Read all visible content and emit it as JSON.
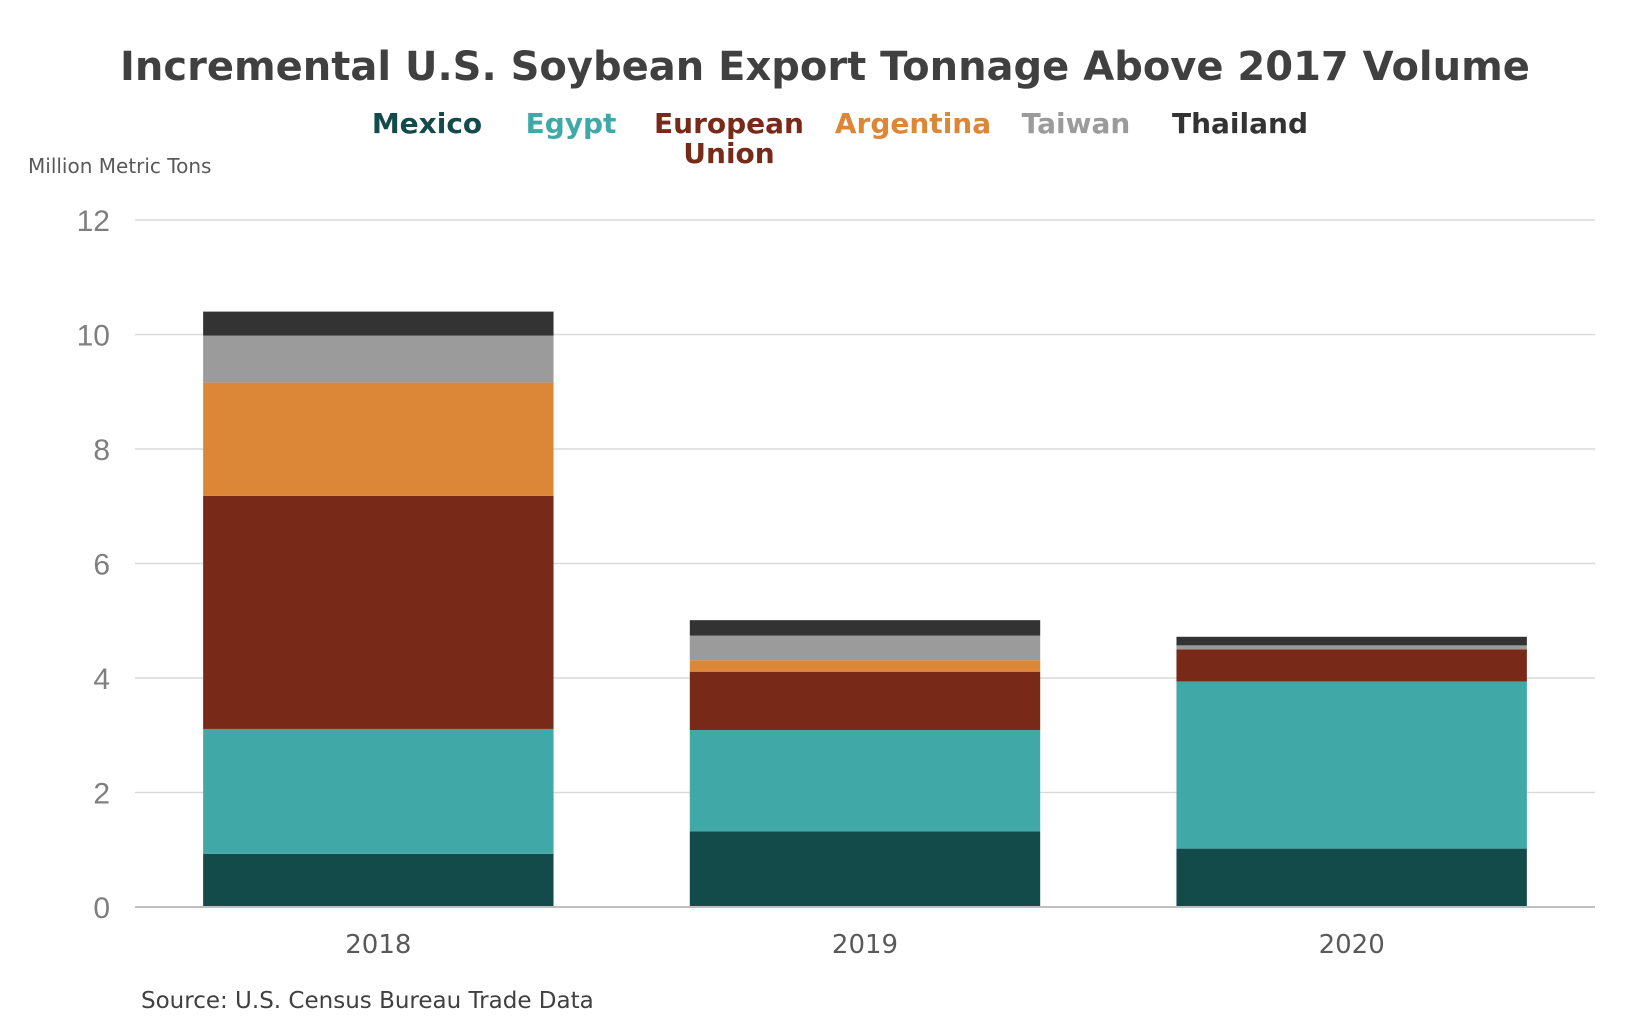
{
  "chart_data": {
    "type": "bar",
    "stacked": true,
    "title": "Incremental U.S. Soybean Export Tonnage Above 2017 Volume",
    "ylabel": "Million Metric Tons",
    "xlabel": "",
    "ylim": [
      0,
      12
    ],
    "yticks": [
      "0",
      "2",
      "4",
      "6",
      "8",
      "10",
      "12"
    ],
    "grid": true,
    "legend_position": "top",
    "categories": [
      "2018",
      "2019",
      "2020"
    ],
    "series": [
      {
        "name": "Mexico",
        "legend_lines": [
          "Mexico"
        ],
        "color": "#134a4a",
        "values": [
          0.93,
          1.32,
          1.02
        ]
      },
      {
        "name": "Egypt",
        "legend_lines": [
          "Egypt"
        ],
        "color": "#40a9a8",
        "values": [
          2.18,
          1.77,
          2.92
        ]
      },
      {
        "name": "European Union",
        "legend_lines": [
          "European",
          "Union"
        ],
        "color": "#792918",
        "values": [
          4.07,
          1.02,
          0.56
        ]
      },
      {
        "name": "Argentina",
        "legend_lines": [
          "Argentina"
        ],
        "color": "#dc8637",
        "values": [
          1.98,
          0.2,
          0.0
        ]
      },
      {
        "name": "Taiwan",
        "legend_lines": [
          "Taiwan"
        ],
        "color": "#9b9b9b",
        "values": [
          0.82,
          0.43,
          0.07
        ]
      },
      {
        "name": "Thailand",
        "legend_lines": [
          "Thailand"
        ],
        "color": "#333333",
        "values": [
          0.42,
          0.27,
          0.15
        ]
      }
    ],
    "source": "Source: U.S. Census Bureau Trade Data"
  }
}
